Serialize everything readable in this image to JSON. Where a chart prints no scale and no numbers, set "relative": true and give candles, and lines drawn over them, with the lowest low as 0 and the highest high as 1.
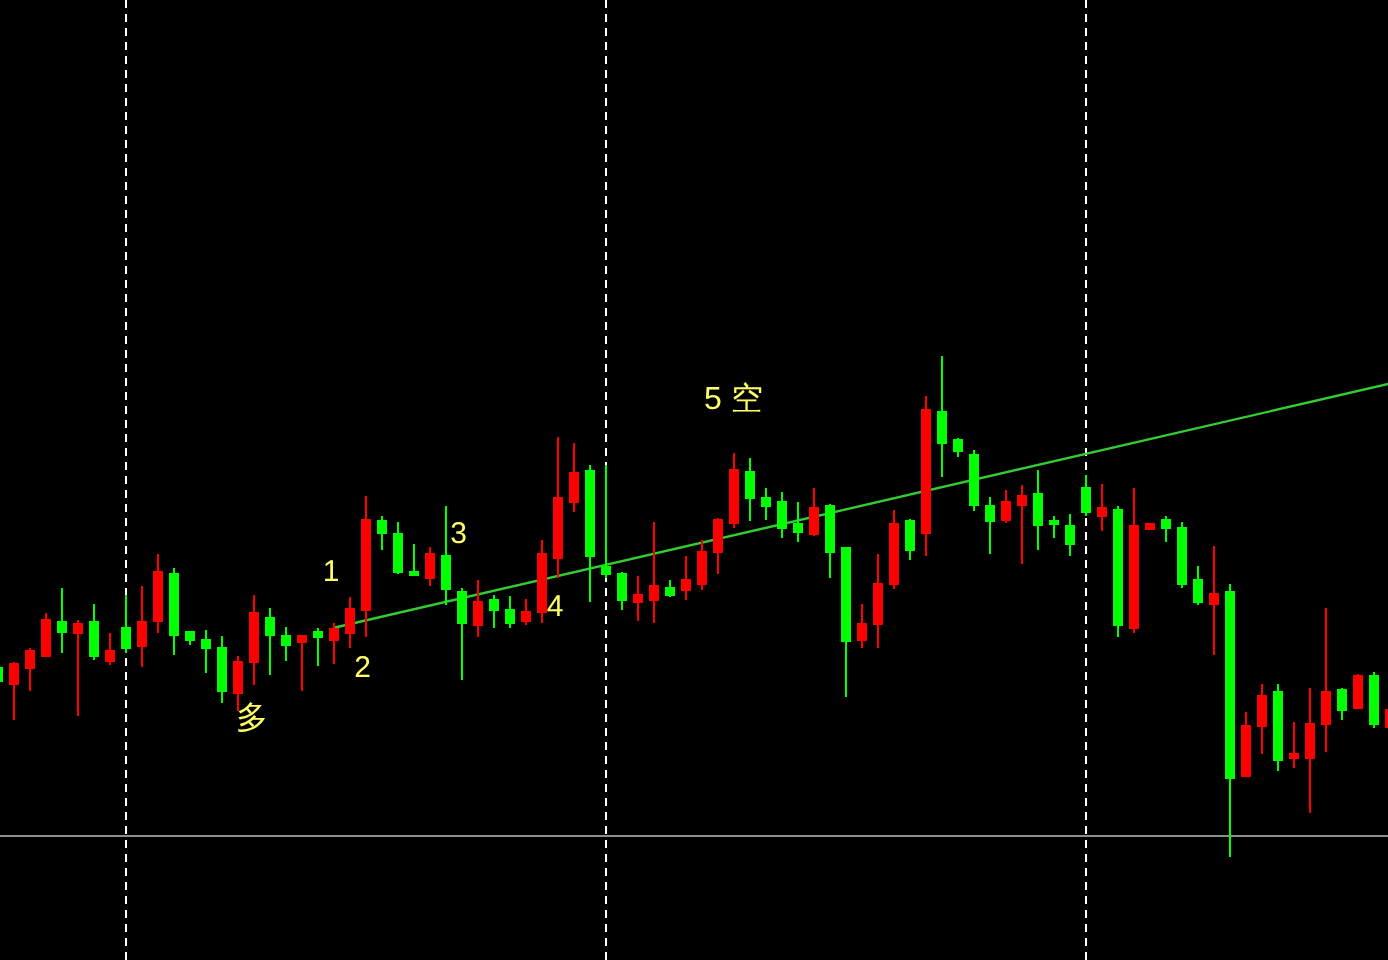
{
  "chart_data": {
    "type": "candlestick",
    "relative": true,
    "grid": "x",
    "categories": [
      null,
      null,
      null,
      null,
      null,
      null,
      null,
      null,
      null,
      null,
      null,
      null,
      null,
      null,
      null,
      null,
      null,
      null,
      null,
      null,
      null,
      null,
      null,
      null,
      null,
      null,
      null,
      null,
      null,
      null,
      null,
      null,
      null,
      null,
      null,
      null,
      null,
      null,
      null,
      null,
      null,
      null,
      null,
      null,
      null,
      null,
      null,
      null,
      null,
      null,
      null,
      null,
      null,
      null,
      null,
      null,
      null,
      null,
      null,
      null,
      null,
      null,
      null,
      null,
      null,
      null,
      null,
      null,
      null,
      null,
      null,
      null,
      null,
      null,
      null,
      null,
      null,
      null,
      null,
      null,
      null,
      null,
      null,
      null,
      null,
      null,
      null,
      null
    ],
    "ohlc": [
      [
        0.377,
        0.377,
        0.351,
        0.351
      ],
      [
        0.346,
        0.39,
        0.274,
        0.386
      ],
      [
        0.378,
        0.418,
        0.331,
        0.411
      ],
      [
        0.402,
        0.487,
        0.402,
        0.473
      ],
      [
        0.469,
        0.537,
        0.407,
        0.45
      ],
      [
        0.447,
        0.473,
        0.283,
        0.465
      ],
      [
        0.469,
        0.505,
        0.394,
        0.402
      ],
      [
        0.391,
        0.447,
        0.383,
        0.411
      ],
      [
        0.458,
        0.523,
        0.407,
        0.418
      ],
      [
        0.422,
        0.541,
        0.379,
        0.469
      ],
      [
        0.471,
        0.606,
        0.447,
        0.569
      ],
      [
        0.565,
        0.577,
        0.403,
        0.443
      ],
      [
        0.45,
        0.45,
        0.423,
        0.434
      ],
      [
        0.434,
        0.454,
        0.367,
        0.418
      ],
      [
        0.418,
        0.442,
        0.307,
        0.331
      ],
      [
        0.327,
        0.402,
        0.291,
        0.39
      ],
      [
        0.39,
        0.523,
        0.343,
        0.487
      ],
      [
        0.477,
        0.497,
        0.363,
        0.443
      ],
      [
        0.442,
        0.46,
        0.391,
        0.423
      ],
      [
        0.43,
        0.442,
        0.331,
        0.442
      ],
      [
        0.45,
        0.458,
        0.381,
        0.439
      ],
      [
        0.434,
        0.467,
        0.386,
        0.455
      ],
      [
        0.447,
        0.519,
        0.418,
        0.495
      ],
      [
        0.493,
        0.721,
        0.439,
        0.673
      ],
      [
        0.67,
        0.68,
        0.614,
        0.646
      ],
      [
        0.645,
        0.669,
        0.566,
        0.569
      ],
      [
        0.569,
        0.626,
        0.564,
        0.564
      ],
      [
        0.558,
        0.62,
        0.542,
        0.605
      ],
      [
        0.601,
        0.701,
        0.504,
        0.535
      ],
      [
        0.529,
        0.537,
        0.354,
        0.467
      ],
      [
        0.463,
        0.553,
        0.439,
        0.509
      ],
      [
        0.513,
        0.523,
        0.458,
        0.493
      ],
      [
        0.493,
        0.521,
        0.458,
        0.467
      ],
      [
        0.471,
        0.516,
        0.463,
        0.489
      ],
      [
        0.489,
        0.633,
        0.467,
        0.605
      ],
      [
        0.598,
        0.839,
        0.558,
        0.717
      ],
      [
        0.709,
        0.826,
        0.689,
        0.766
      ],
      [
        0.77,
        0.782,
        0.509,
        0.601
      ],
      [
        0.58,
        0.782,
        0.558,
        0.566
      ],
      [
        0.566,
        0.569,
        0.493,
        0.513
      ],
      [
        0.509,
        0.562,
        0.471,
        0.523
      ],
      [
        0.513,
        0.669,
        0.467,
        0.541
      ],
      [
        0.537,
        0.553,
        0.52,
        0.524
      ],
      [
        0.533,
        0.601,
        0.513,
        0.553
      ],
      [
        0.545,
        0.633,
        0.533,
        0.609
      ],
      [
        0.609,
        0.677,
        0.566,
        0.673
      ],
      [
        0.666,
        0.806,
        0.657,
        0.773
      ],
      [
        0.769,
        0.797,
        0.67,
        0.717
      ],
      [
        0.717,
        0.737,
        0.673,
        0.701
      ],
      [
        0.709,
        0.729,
        0.638,
        0.657
      ],
      [
        0.665,
        0.709,
        0.63,
        0.649
      ],
      [
        0.645,
        0.737,
        0.641,
        0.697
      ],
      [
        0.701,
        0.704,
        0.558,
        0.609
      ],
      [
        0.617,
        0.62,
        0.319,
        0.431
      ],
      [
        0.434,
        0.505,
        0.418,
        0.465
      ],
      [
        0.465,
        0.605,
        0.418,
        0.545
      ],
      [
        0.545,
        0.693,
        0.535,
        0.665
      ],
      [
        0.67,
        0.674,
        0.593,
        0.613
      ],
      [
        0.646,
        0.92,
        0.602,
        0.892
      ],
      [
        0.888,
        1,
        0.759,
        0.826
      ],
      [
        0.832,
        0.836,
        0.798,
        0.81
      ],
      [
        0.803,
        0.813,
        0.69,
        0.702
      ],
      [
        0.7,
        0.718,
        0.606,
        0.67
      ],
      [
        0.673,
        0.732,
        0.666,
        0.709
      ],
      [
        0.702,
        0.742,
        0.586,
        0.72
      ],
      [
        0.724,
        0.773,
        0.613,
        0.662
      ],
      [
        0.67,
        0.68,
        0.638,
        0.664
      ],
      [
        0.66,
        0.684,
        0.602,
        0.626
      ],
      [
        0.737,
        0.762,
        0.68,
        0.689
      ],
      [
        0.681,
        0.745,
        0.65,
        0.697
      ],
      [
        0.693,
        0.7,
        0.439,
        0.463
      ],
      [
        0.458,
        0.737,
        0.447,
        0.661
      ],
      [
        0.654,
        0.665,
        0.654,
        0.665
      ],
      [
        0.673,
        0.681,
        0.63,
        0.657
      ],
      [
        0.657,
        0.669,
        0.538,
        0.545
      ],
      [
        0.553,
        0.581,
        0.503,
        0.509
      ],
      [
        0.505,
        0.621,
        0.403,
        0.525
      ],
      [
        0.529,
        0.545,
        0,
        0.158
      ],
      [
        0.162,
        0.29,
        0.162,
        0.262
      ],
      [
        0.262,
        0.346,
        0.207,
        0.322
      ],
      [
        0.33,
        0.346,
        0.172,
        0.194
      ],
      [
        0.198,
        0.27,
        0.178,
        0.207
      ],
      [
        0.198,
        0.338,
        0.088,
        0.266
      ],
      [
        0.266,
        0.497,
        0.21,
        0.33
      ],
      [
        0.334,
        0.338,
        0.274,
        0.294
      ],
      [
        0.298,
        0.366,
        0.298,
        0.362
      ],
      [
        0.362,
        0.37,
        0.258,
        0.266
      ],
      [
        0.261,
        0.294,
        0.261,
        0.294
      ]
    ],
    "colors": [
      "#00ff00",
      "#ff0000",
      "#ff0000",
      "#ff0000",
      "#00ff00",
      "#ff0000",
      "#00ff00",
      "#ff0000",
      "#00ff00",
      "#ff0000",
      "#ff0000",
      "#00ff00",
      "#00ff00",
      "#00ff00",
      "#00ff00",
      "#ff0000",
      "#ff0000",
      "#00ff00",
      "#00ff00",
      "#ff0000",
      "#00ff00",
      "#ff0000",
      "#ff0000",
      "#ff0000",
      "#00ff00",
      "#00ff00",
      "#00ff00",
      "#ff0000",
      "#00ff00",
      "#00ff00",
      "#ff0000",
      "#00ff00",
      "#00ff00",
      "#ff0000",
      "#ff0000",
      "#ff0000",
      "#ff0000",
      "#00ff00",
      "#00ff00",
      "#00ff00",
      "#ff0000",
      "#ff0000",
      "#00ff00",
      "#ff0000",
      "#ff0000",
      "#ff0000",
      "#ff0000",
      "#00ff00",
      "#00ff00",
      "#00ff00",
      "#00ff00",
      "#ff0000",
      "#00ff00",
      "#00ff00",
      "#ff0000",
      "#ff0000",
      "#ff0000",
      "#00ff00",
      "#ff0000",
      "#00ff00",
      "#00ff00",
      "#00ff00",
      "#00ff00",
      "#ff0000",
      "#ff0000",
      "#00ff00",
      "#00ff00",
      "#00ff00",
      "#00ff00",
      "#ff0000",
      "#00ff00",
      "#ff0000",
      "#ff0000",
      "#00ff00",
      "#00ff00",
      "#00ff00",
      "#ff0000",
      "#00ff00",
      "#ff0000",
      "#ff0000",
      "#00ff00",
      "#ff0000",
      "#ff0000",
      "#ff0000",
      "#00ff00",
      "#ff0000",
      "#00ff00",
      "#ff0000"
    ],
    "series": [
      {
        "type": "line",
        "color": "#33cc33",
        "values": [
          null,
          null,
          null,
          null,
          null,
          null,
          null,
          null,
          null,
          null,
          null,
          null,
          null,
          null,
          null,
          null,
          null,
          null,
          null,
          null,
          null,
          0.458,
          null,
          null,
          null,
          null,
          null,
          null,
          null,
          null,
          null,
          null,
          null,
          null,
          null,
          null,
          null,
          null,
          null,
          null,
          null,
          null,
          null,
          null,
          null,
          null,
          null,
          null,
          null,
          null,
          null,
          null,
          null,
          null,
          null,
          null,
          null,
          null,
          null,
          null,
          null,
          null,
          null,
          null,
          null,
          null,
          null,
          null,
          null,
          null,
          null,
          null,
          null,
          null,
          null,
          null,
          null,
          null,
          null,
          null,
          null,
          null,
          null,
          null,
          null,
          null,
          null,
          0.945
        ]
      }
    ],
    "ref_lines": [
      {
        "axis": "y",
        "value": 0.043,
        "color": "#8c8c8c"
      }
    ],
    "annotations": [
      "多",
      "1",
      "2",
      "3",
      "4",
      "5 空"
    ]
  }
}
